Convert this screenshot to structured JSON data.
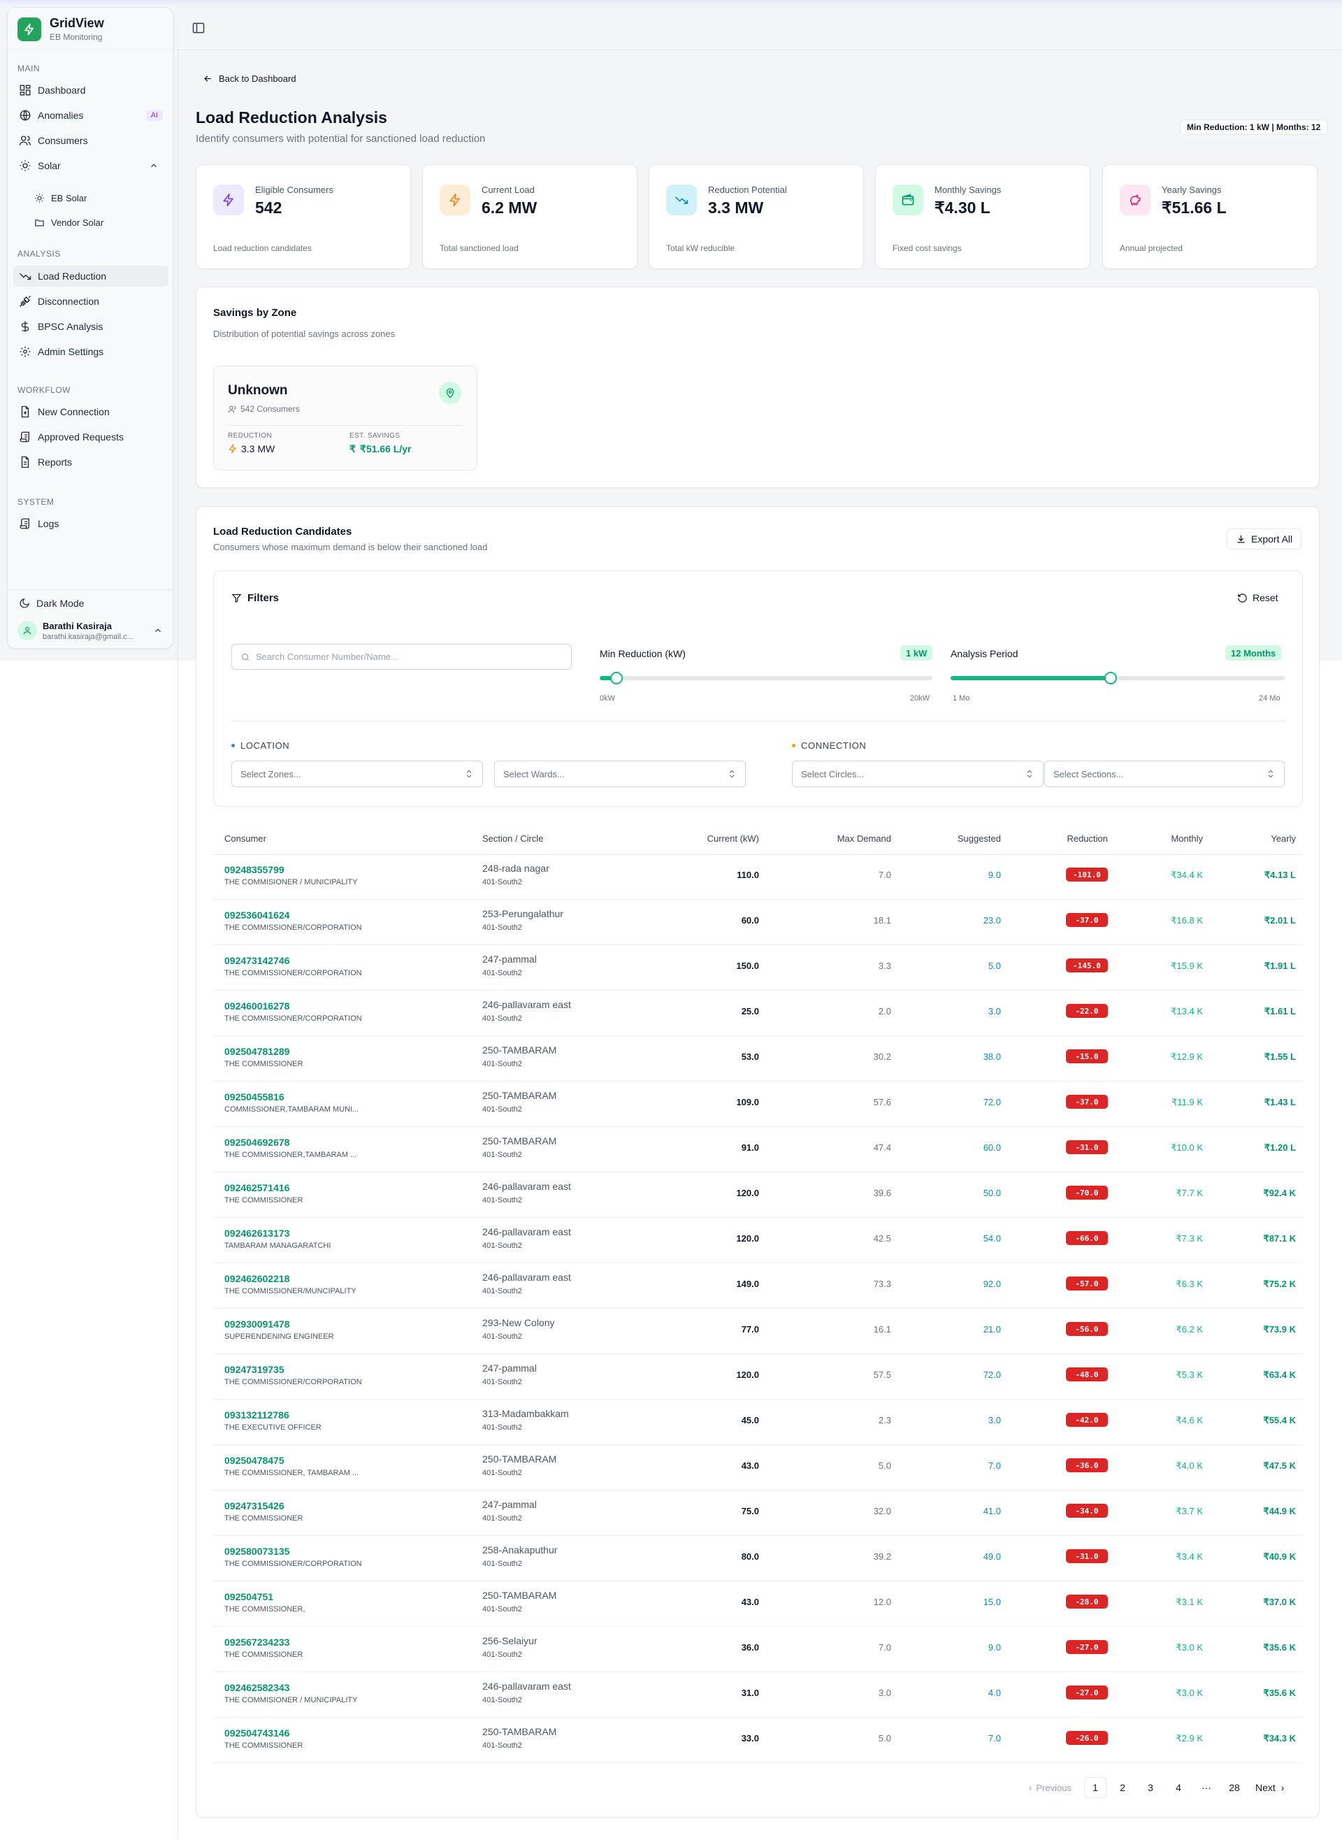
{
  "brand": {
    "title": "GridView",
    "subtitle": "EB Monitoring"
  },
  "sidebar": {
    "sections": {
      "main": "MAIN",
      "analysis": "ANALYSIS",
      "workflow": "WORKFLOW",
      "system": "SYSTEM"
    },
    "items": {
      "dashboard": "Dashboard",
      "anomalies": "Anomalies",
      "anomalies_badge": "AI",
      "consumers": "Consumers",
      "solar": "Solar",
      "eb_solar": "EB Solar",
      "vendor_solar": "Vendor Solar",
      "load_reduction": "Load Reduction",
      "disconnection": "Disconnection",
      "bpsc": "BPSC Analysis",
      "admin": "Admin Settings",
      "new_connection": "New Connection",
      "approved": "Approved Requests",
      "reports": "Reports",
      "logs": "Logs"
    },
    "dark_mode": "Dark Mode",
    "user": {
      "name": "Barathi Kasiraja",
      "email": "barathi.kasiraja@gmail.c..."
    }
  },
  "page": {
    "back": "Back to Dashboard",
    "title": "Load Reduction Analysis",
    "subtitle": "Identify consumers with potential for sanctioned load reduction",
    "params_pill": "Min Reduction: 1 kW | Months: 12"
  },
  "stats": [
    {
      "label": "Eligible Consumers",
      "value": "542",
      "foot": "Load reduction candidates",
      "color": "#7c3aed",
      "bg": "#ede9fe",
      "icon": "bolt-icon"
    },
    {
      "label": "Current Load",
      "value": "6.2 MW",
      "foot": "Total sanctioned load",
      "color": "#ea8a16",
      "bg": "#fdecd6",
      "icon": "bolt-icon"
    },
    {
      "label": "Reduction Potential",
      "value": "3.3 MW",
      "foot": "Total kW reducible",
      "color": "#0891b2",
      "bg": "#cff1f7",
      "icon": "trending-down-icon"
    },
    {
      "label": "Monthly Savings",
      "value": "₹4.30 L",
      "foot": "Fixed cost savings",
      "color": "#059669",
      "bg": "#d1fae5",
      "icon": "wallet-icon"
    },
    {
      "label": "Yearly Savings",
      "value": "₹51.66 L",
      "foot": "Annual projected",
      "color": "#db2777",
      "bg": "#fce7f3",
      "icon": "piggy-bank-icon"
    }
  ],
  "zones": {
    "title": "Savings by Zone",
    "subtitle": "Distribution of potential savings across zones",
    "card": {
      "name": "Unknown",
      "consumers": "542 Consumers",
      "reduction_label": "REDUCTION",
      "reduction": "3.3 MW",
      "savings_label": "EST. SAVINGS",
      "savings": "₹51.66 L/yr"
    }
  },
  "candidates": {
    "title": "Load Reduction Candidates",
    "subtitle": "Consumers whose maximum demand is below their sanctioned load",
    "export": "Export All"
  },
  "filters": {
    "title": "Filters",
    "reset": "Reset",
    "search_placeholder": "Search Consumer Number/Name...",
    "min_reduction": {
      "label": "Min Reduction (kW)",
      "badge": "1 kW",
      "min": "0kW",
      "max": "20kW",
      "value": 1,
      "range": [
        0,
        20
      ]
    },
    "period": {
      "label": "Analysis Period",
      "badge": "12 Months",
      "min": "1 Mo",
      "max": "24 Mo",
      "value": 12,
      "range": [
        1,
        24
      ]
    },
    "location": "LOCATION",
    "connection": "CONNECTION",
    "zones": "Select Zones...",
    "wards": "Select Wards...",
    "circles": "Select Circles...",
    "sections": "Select Sections..."
  },
  "table": {
    "headers": {
      "consumer": "Consumer",
      "section": "Section / Circle",
      "current": "Current (kW)",
      "maxd": "Max Demand",
      "suggested": "Suggested",
      "reduction": "Reduction",
      "monthly": "Monthly",
      "yearly": "Yearly"
    },
    "rows": [
      {
        "id": "09248355799",
        "name": "THE COMMISIONER / MUNICIPALITY",
        "section": "248-rada nagar",
        "circle": "401-South2",
        "current": "110.0",
        "max": "7.0",
        "suggested": "9.0",
        "reduction": "-101.0",
        "monthly": "₹34.4 K",
        "yearly": "₹4.13 L"
      },
      {
        "id": "092536041624",
        "name": "THE COMMISSIONER/CORPORATION",
        "section": "253-Perungalathur",
        "circle": "401-South2",
        "current": "60.0",
        "max": "18.1",
        "suggested": "23.0",
        "reduction": "-37.0",
        "monthly": "₹16.8 K",
        "yearly": "₹2.01 L"
      },
      {
        "id": "092473142746",
        "name": "THE COMMISSIONER/CORPORATION",
        "section": "247-pammal",
        "circle": "401-South2",
        "current": "150.0",
        "max": "3.3",
        "suggested": "5.0",
        "reduction": "-145.0",
        "monthly": "₹15.9 K",
        "yearly": "₹1.91 L"
      },
      {
        "id": "092460016278",
        "name": "THE COMMISSIONER/CORPORATION",
        "section": "246-pallavaram east",
        "circle": "401-South2",
        "current": "25.0",
        "max": "2.0",
        "suggested": "3.0",
        "reduction": "-22.0",
        "monthly": "₹13.4 K",
        "yearly": "₹1.61 L"
      },
      {
        "id": "092504781289",
        "name": "THE COMMISSIONER",
        "section": "250-TAMBARAM",
        "circle": "401-South2",
        "current": "53.0",
        "max": "30.2",
        "suggested": "38.0",
        "reduction": "-15.0",
        "monthly": "₹12.9 K",
        "yearly": "₹1.55 L"
      },
      {
        "id": "09250455816",
        "name": "COMMISSIONER,TAMBARAM MUNI...",
        "section": "250-TAMBARAM",
        "circle": "401-South2",
        "current": "109.0",
        "max": "57.6",
        "suggested": "72.0",
        "reduction": "-37.0",
        "monthly": "₹11.9 K",
        "yearly": "₹1.43 L"
      },
      {
        "id": "09250469267​8",
        "name": "THE COMMISSIONER,TAMBARAM ...",
        "section": "250-TAMBARAM",
        "circle": "401-South2",
        "current": "91.0",
        "max": "47.4",
        "suggested": "60.0",
        "reduction": "-31.0",
        "monthly": "₹10.0 K",
        "yearly": "₹1.20 L"
      },
      {
        "id": "092462571416",
        "name": "THE COMMISSIONER",
        "section": "246-pallavaram east",
        "circle": "401-South2",
        "current": "120.0",
        "max": "39.6",
        "suggested": "50.0",
        "reduction": "-70.0",
        "monthly": "₹7.7 K",
        "yearly": "₹92.4 K"
      },
      {
        "id": "092462613173",
        "name": "TAMBARAM MANAGARATCHI",
        "section": "246-pallavaram east",
        "circle": "401-South2",
        "current": "120.0",
        "max": "42.5",
        "suggested": "54.0",
        "reduction": "-66.0",
        "monthly": "₹7.3 K",
        "yearly": "₹87.1 K"
      },
      {
        "id": "092462602218",
        "name": "THE COMMISSIONER/MUNCIPALITY",
        "section": "246-pallavaram east",
        "circle": "401-South2",
        "current": "149.0",
        "max": "73.3",
        "suggested": "92.0",
        "reduction": "-57.0",
        "monthly": "₹6.3 K",
        "yearly": "₹75.2 K"
      },
      {
        "id": "092930091478",
        "name": "SUPERENDENING ENGINEER",
        "section": "293-New Colony",
        "circle": "401-South2",
        "current": "77.0",
        "max": "16.1",
        "suggested": "21.0",
        "reduction": "-56.0",
        "monthly": "₹6.2 K",
        "yearly": "₹73.9 K"
      },
      {
        "id": "09247319735",
        "name": "THE COMMISSIONER/CORPORATION",
        "section": "247-pammal",
        "circle": "401-South2",
        "current": "120.0",
        "max": "57.5",
        "suggested": "72.0",
        "reduction": "-48.0",
        "monthly": "₹5.3 K",
        "yearly": "₹63.4 K"
      },
      {
        "id": "093132112786",
        "name": "THE EXECUTIVE OFFICER",
        "section": "313-Madambakkam",
        "circle": "401-South2",
        "current": "45.0",
        "max": "2.3",
        "suggested": "3.0",
        "reduction": "-42.0",
        "monthly": "₹4.6 K",
        "yearly": "₹55.4 K"
      },
      {
        "id": "09250478475",
        "name": "THE COMMISSIONER, TAMBARAM ...",
        "section": "250-TAMBARAM",
        "circle": "401-South2",
        "current": "43.0",
        "max": "5.0",
        "suggested": "7.0",
        "reduction": "-36.0",
        "monthly": "₹4.0 K",
        "yearly": "₹47.5 K"
      },
      {
        "id": "09247315426",
        "name": "THE COMMISSIONER",
        "section": "247-pammal",
        "circle": "401-South2",
        "current": "75.0",
        "max": "32.0",
        "suggested": "41.0",
        "reduction": "-34.0",
        "monthly": "₹3.7 K",
        "yearly": "₹44.9 K"
      },
      {
        "id": "092580073135",
        "name": "THE COMMISSIONER/CORPORATION",
        "section": "258-Anakaputhur",
        "circle": "401-South2",
        "current": "80.0",
        "max": "39.2",
        "suggested": "49.0",
        "reduction": "-31.0",
        "monthly": "₹3.4 K",
        "yearly": "₹40.9 K"
      },
      {
        "id": "092504751",
        "name": "THE COMMISSIONER,",
        "section": "250-TAMBARAM",
        "circle": "401-South2",
        "current": "43.0",
        "max": "12.0",
        "suggested": "15.0",
        "reduction": "-28.0",
        "monthly": "₹3.1 K",
        "yearly": "₹37.0 K"
      },
      {
        "id": "092567234233",
        "name": "THE COMMISSIONER",
        "section": "256-Selaiyur",
        "circle": "401-South2",
        "current": "36.0",
        "max": "7.0",
        "suggested": "9.0",
        "reduction": "-27.0",
        "monthly": "₹3.0 K",
        "yearly": "₹35.6 K"
      },
      {
        "id": "092462582343",
        "name": "THE COMMISIONER / MUNICIPALITY",
        "section": "246-pallavaram east",
        "circle": "401-South2",
        "current": "31.0",
        "max": "3.0",
        "suggested": "4.0",
        "reduction": "-27.0",
        "monthly": "₹3.0 K",
        "yearly": "₹35.6 K"
      },
      {
        "id": "092504743146",
        "name": "THE COMMISSIONER",
        "section": "250-TAMBARAM",
        "circle": "401-South2",
        "current": "33.0",
        "max": "5.0",
        "suggested": "7.0",
        "reduction": "-26.0",
        "monthly": "₹2.9 K",
        "yearly": "₹34.3 K"
      }
    ]
  },
  "pagination": {
    "previous": "Previous",
    "pages": [
      "1",
      "2",
      "3",
      "4"
    ],
    "ellipsis": "···",
    "last": "28",
    "next": "Next",
    "current": "1"
  }
}
